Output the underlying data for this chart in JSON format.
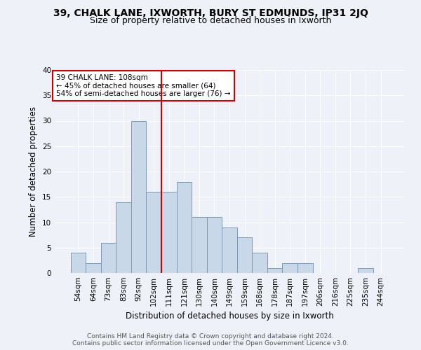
{
  "title1": "39, CHALK LANE, IXWORTH, BURY ST EDMUNDS, IP31 2JQ",
  "title2": "Size of property relative to detached houses in Ixworth",
  "xlabel": "Distribution of detached houses by size in Ixworth",
  "ylabel": "Number of detached properties",
  "categories": [
    "54sqm",
    "64sqm",
    "73sqm",
    "83sqm",
    "92sqm",
    "102sqm",
    "111sqm",
    "121sqm",
    "130sqm",
    "140sqm",
    "149sqm",
    "159sqm",
    "168sqm",
    "178sqm",
    "187sqm",
    "197sqm",
    "206sqm",
    "216sqm",
    "225sqm",
    "235sqm",
    "244sqm"
  ],
  "values": [
    4,
    2,
    6,
    14,
    30,
    16,
    16,
    18,
    11,
    11,
    9,
    7,
    4,
    1,
    2,
    2,
    0,
    0,
    0,
    1,
    0
  ],
  "bar_color": "#c8d8e8",
  "bar_edge_color": "#7a9ab8",
  "vline_x_index": 5.5,
  "vline_color": "#cc0000",
  "annotation_text": "39 CHALK LANE: 108sqm\n← 45% of detached houses are smaller (64)\n54% of semi-detached houses are larger (76) →",
  "annotation_box_edge": "#cc0000",
  "ylim": [
    0,
    40
  ],
  "yticks": [
    0,
    5,
    10,
    15,
    20,
    25,
    30,
    35,
    40
  ],
  "footer1": "Contains HM Land Registry data © Crown copyright and database right 2024.",
  "footer2": "Contains public sector information licensed under the Open Government Licence v3.0.",
  "bg_color": "#eef2f8",
  "plot_bg_color": "#eef2f8",
  "title1_fontsize": 10,
  "title2_fontsize": 9,
  "xlabel_fontsize": 8.5,
  "ylabel_fontsize": 8.5,
  "tick_fontsize": 7.5,
  "footer_fontsize": 6.5,
  "annot_fontsize": 7.5
}
